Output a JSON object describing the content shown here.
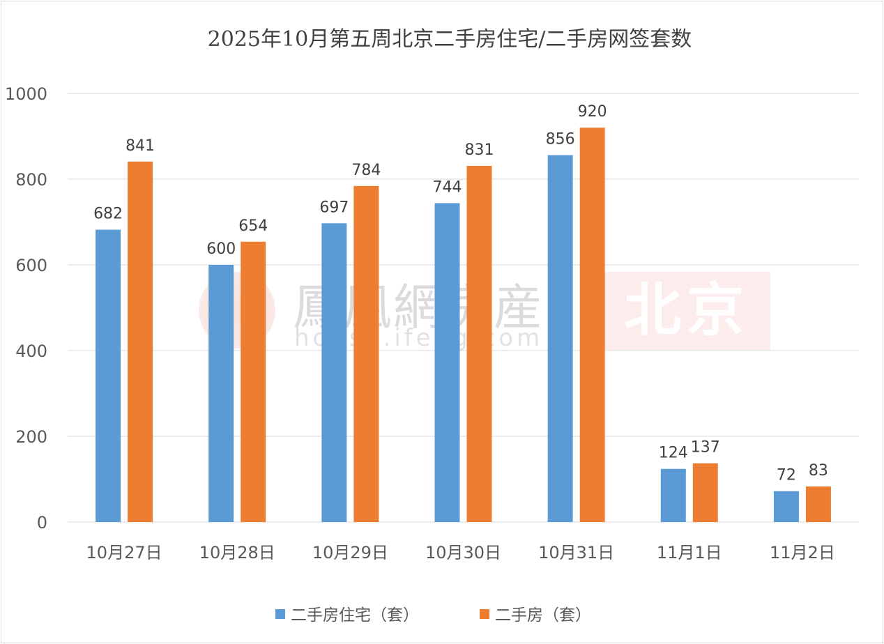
{
  "chart_data": {
    "type": "bar",
    "title": "2025年10月第五周北京二手房住宅/二手房网签套数",
    "categories": [
      "10月27日",
      "10月28日",
      "10月29日",
      "10月30日",
      "10月31日",
      "11月1日",
      "11月2日"
    ],
    "series": [
      {
        "name": "二手房住宅（套）",
        "color": "#5b9bd5",
        "values": [
          682,
          600,
          697,
          744,
          856,
          124,
          72
        ]
      },
      {
        "name": "二手房（套）",
        "color": "#ed7d31",
        "values": [
          841,
          654,
          784,
          831,
          920,
          137,
          83
        ]
      }
    ],
    "ylim": [
      0,
      1000
    ],
    "yticks": [
      0,
      200,
      400,
      600,
      800,
      1000
    ],
    "grid": true,
    "legend": "bottom",
    "data_labels": true
  },
  "watermark": {
    "brand": "鳳凰網房産",
    "url": "house.ifeng.com",
    "city": "北京"
  }
}
